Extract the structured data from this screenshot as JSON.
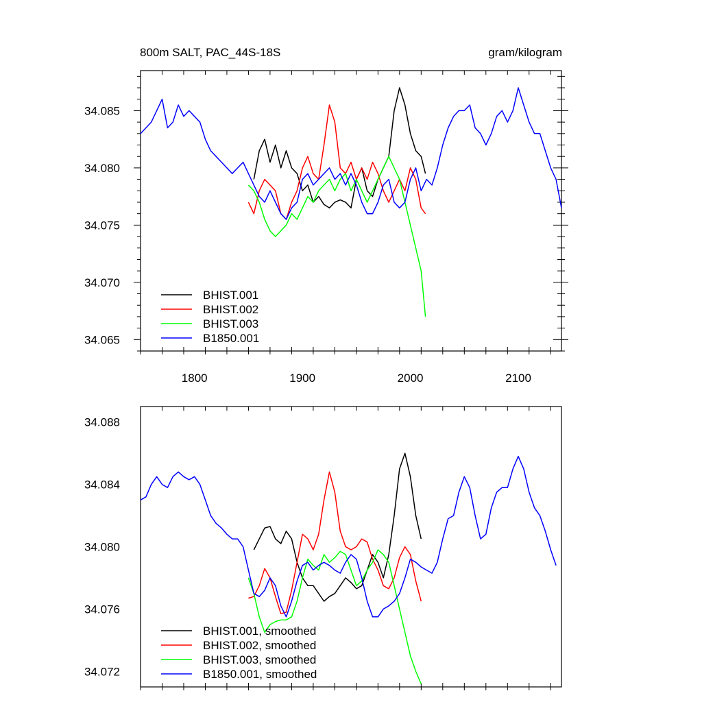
{
  "chart_data": [
    {
      "type": "line",
      "title": "800m SALT, PAC_44S-18S",
      "units": "gram/kilogram",
      "xlim": [
        1750,
        2140
      ],
      "ylim": [
        34.064,
        34.0885
      ],
      "xticks": [
        1800,
        1900,
        2000,
        2100
      ],
      "xtick_labels": [
        "1800",
        "1900",
        "2000",
        "2100"
      ],
      "yticks": [
        34.065,
        34.07,
        34.075,
        34.08,
        34.085
      ],
      "ytick_labels": [
        "34.065",
        "34.070",
        "34.075",
        "34.080",
        "34.085"
      ],
      "grid": false,
      "legend": "bottom-left",
      "series": [
        {
          "name": "BHIST.001",
          "color": "#000000",
          "x": [
            1855,
            1860,
            1865,
            1870,
            1875,
            1880,
            1885,
            1890,
            1895,
            1900,
            1905,
            1910,
            1915,
            1920,
            1925,
            1930,
            1935,
            1940,
            1945,
            1950,
            1955,
            1960,
            1965,
            1970,
            1975,
            1980,
            1985,
            1990,
            1995,
            2000,
            2005,
            2010,
            2014
          ],
          "y": [
            34.079,
            34.0815,
            34.0825,
            34.0805,
            34.082,
            34.08,
            34.0815,
            34.08,
            34.0795,
            34.078,
            34.0785,
            34.077,
            34.0775,
            34.0768,
            34.0765,
            34.077,
            34.0772,
            34.077,
            34.0765,
            34.079,
            34.08,
            34.078,
            34.0775,
            34.079,
            34.08,
            34.081,
            34.085,
            34.087,
            34.0855,
            34.083,
            34.0815,
            34.081,
            34.0795
          ]
        },
        {
          "name": "BHIST.002",
          "color": "#ff0000",
          "x": [
            1850,
            1855,
            1860,
            1865,
            1870,
            1875,
            1880,
            1885,
            1890,
            1895,
            1900,
            1905,
            1910,
            1915,
            1920,
            1925,
            1930,
            1935,
            1940,
            1945,
            1950,
            1955,
            1960,
            1965,
            1970,
            1975,
            1980,
            1985,
            1990,
            1995,
            2000,
            2005,
            2010,
            2014
          ],
          "y": [
            34.077,
            34.076,
            34.078,
            34.079,
            34.0785,
            34.078,
            34.076,
            34.0755,
            34.077,
            34.078,
            34.08,
            34.081,
            34.0795,
            34.079,
            34.082,
            34.0855,
            34.084,
            34.08,
            34.0795,
            34.0805,
            34.079,
            34.08,
            34.079,
            34.0805,
            34.0795,
            34.078,
            34.077,
            34.078,
            34.079,
            34.078,
            34.08,
            34.079,
            34.0765,
            34.076
          ]
        },
        {
          "name": "BHIST.003",
          "color": "#00ff00",
          "x": [
            1850,
            1855,
            1860,
            1865,
            1870,
            1875,
            1880,
            1885,
            1890,
            1895,
            1900,
            1905,
            1910,
            1915,
            1920,
            1925,
            1930,
            1935,
            1940,
            1945,
            1950,
            1955,
            1960,
            1965,
            1970,
            1975,
            1980,
            1985,
            1990,
            1995,
            2000,
            2005,
            2010,
            2014
          ],
          "y": [
            34.0785,
            34.078,
            34.077,
            34.0755,
            34.0745,
            34.074,
            34.0745,
            34.075,
            34.076,
            34.0755,
            34.0765,
            34.0775,
            34.077,
            34.078,
            34.0785,
            34.079,
            34.078,
            34.079,
            34.0795,
            34.078,
            34.079,
            34.078,
            34.077,
            34.078,
            34.079,
            34.08,
            34.081,
            34.08,
            34.079,
            34.077,
            34.075,
            34.073,
            34.071,
            34.067
          ]
        },
        {
          "name": "B1850.001",
          "color": "#0000ff",
          "x": [
            1750,
            1755,
            1760,
            1765,
            1770,
            1775,
            1780,
            1785,
            1790,
            1795,
            1800,
            1805,
            1810,
            1815,
            1820,
            1825,
            1830,
            1835,
            1840,
            1845,
            1850,
            1855,
            1860,
            1865,
            1870,
            1875,
            1880,
            1885,
            1890,
            1895,
            1900,
            1905,
            1910,
            1915,
            1920,
            1925,
            1930,
            1935,
            1940,
            1945,
            1950,
            1955,
            1960,
            1965,
            1970,
            1975,
            1980,
            1985,
            1990,
            1995,
            2000,
            2005,
            2010,
            2015,
            2020,
            2025,
            2030,
            2035,
            2040,
            2045,
            2050,
            2055,
            2060,
            2065,
            2070,
            2075,
            2080,
            2085,
            2090,
            2095,
            2100,
            2105,
            2110,
            2115,
            2120,
            2125,
            2130,
            2135,
            2140
          ],
          "y": [
            34.083,
            34.0835,
            34.084,
            34.085,
            34.086,
            34.0835,
            34.084,
            34.0855,
            34.0845,
            34.085,
            34.0845,
            34.084,
            34.0825,
            34.0815,
            34.081,
            34.0805,
            34.08,
            34.0795,
            34.08,
            34.0805,
            34.0795,
            34.0785,
            34.0775,
            34.077,
            34.078,
            34.077,
            34.076,
            34.0755,
            34.0765,
            34.077,
            34.079,
            34.0795,
            34.0785,
            34.079,
            34.0795,
            34.08,
            34.079,
            34.0795,
            34.0785,
            34.0795,
            34.0785,
            34.077,
            34.076,
            34.076,
            34.077,
            34.0785,
            34.079,
            34.077,
            34.0765,
            34.077,
            34.079,
            34.08,
            34.078,
            34.079,
            34.0785,
            34.08,
            34.082,
            34.0835,
            34.0845,
            34.085,
            34.085,
            34.0855,
            34.0835,
            34.083,
            34.082,
            34.083,
            34.0845,
            34.085,
            34.084,
            34.085,
            34.087,
            34.0855,
            34.084,
            34.083,
            34.083,
            34.0815,
            34.08,
            34.079,
            34.0765
          ]
        }
      ]
    },
    {
      "type": "line",
      "xlim": [
        1750,
        2140
      ],
      "ylim": [
        34.071,
        34.089
      ],
      "xticks": [
        1800,
        1900,
        2000,
        2100
      ],
      "yticks": [
        34.072,
        34.076,
        34.08,
        34.084,
        34.088
      ],
      "ytick_labels": [
        "34.072",
        "34.076",
        "34.080",
        "34.084",
        "34.088"
      ],
      "grid": false,
      "legend": "bottom-left",
      "series": [
        {
          "name": "BHIST.001, smoothed",
          "color": "#000000",
          "x": [
            1855,
            1860,
            1865,
            1870,
            1875,
            1880,
            1885,
            1890,
            1895,
            1900,
            1905,
            1910,
            1915,
            1920,
            1925,
            1930,
            1935,
            1940,
            1945,
            1950,
            1955,
            1960,
            1965,
            1970,
            1975,
            1980,
            1985,
            1990,
            1995,
            2000,
            2005,
            2010
          ],
          "y": [
            34.0798,
            34.0805,
            34.0812,
            34.0813,
            34.0805,
            34.0802,
            34.081,
            34.0805,
            34.079,
            34.078,
            34.0775,
            34.0775,
            34.077,
            34.0765,
            34.0768,
            34.077,
            34.0775,
            34.078,
            34.0777,
            34.0773,
            34.0775,
            34.0785,
            34.0795,
            34.079,
            34.078,
            34.0795,
            34.082,
            34.085,
            34.086,
            34.0845,
            34.082,
            34.0805
          ]
        },
        {
          "name": "BHIST.002, smoothed",
          "color": "#ff0000",
          "x": [
            1850,
            1855,
            1860,
            1865,
            1870,
            1875,
            1880,
            1885,
            1890,
            1895,
            1900,
            1905,
            1910,
            1915,
            1920,
            1925,
            1930,
            1935,
            1940,
            1945,
            1950,
            1955,
            1960,
            1965,
            1970,
            1975,
            1980,
            1985,
            1990,
            1995,
            2000,
            2005,
            2010
          ],
          "y": [
            34.0767,
            34.0768,
            34.0775,
            34.0786,
            34.078,
            34.0768,
            34.0757,
            34.0758,
            34.0772,
            34.079,
            34.0808,
            34.0805,
            34.0798,
            34.0808,
            34.083,
            34.0848,
            34.0835,
            34.081,
            34.08,
            34.0798,
            34.08,
            34.0805,
            34.0803,
            34.0792,
            34.0785,
            34.0775,
            34.0773,
            34.078,
            34.0793,
            34.08,
            34.0795,
            34.0778,
            34.0765
          ]
        },
        {
          "name": "BHIST.003, smoothed",
          "color": "#00ff00",
          "x": [
            1850,
            1855,
            1860,
            1865,
            1870,
            1875,
            1880,
            1885,
            1890,
            1895,
            1900,
            1905,
            1910,
            1915,
            1920,
            1925,
            1930,
            1935,
            1940,
            1945,
            1950,
            1955,
            1960,
            1965,
            1970,
            1975,
            1980,
            1985,
            1990,
            1995,
            2000,
            2005,
            2010
          ],
          "y": [
            34.078,
            34.077,
            34.0755,
            34.0745,
            34.075,
            34.0752,
            34.0753,
            34.0753,
            34.0755,
            34.0765,
            34.078,
            34.0792,
            34.0788,
            34.0785,
            34.0795,
            34.079,
            34.0793,
            34.0797,
            34.0795,
            34.0785,
            34.0775,
            34.0778,
            34.0785,
            34.079,
            34.0798,
            34.0795,
            34.079,
            34.0775,
            34.076,
            34.0745,
            34.073,
            34.072,
            34.0712
          ]
        },
        {
          "name": "B1850.001, smoothed",
          "color": "#0000ff",
          "x": [
            1750,
            1755,
            1760,
            1765,
            1770,
            1775,
            1780,
            1785,
            1790,
            1795,
            1800,
            1805,
            1810,
            1815,
            1820,
            1825,
            1830,
            1835,
            1840,
            1845,
            1850,
            1855,
            1860,
            1865,
            1870,
            1875,
            1880,
            1885,
            1890,
            1895,
            1900,
            1905,
            1910,
            1915,
            1920,
            1925,
            1930,
            1935,
            1940,
            1945,
            1950,
            1955,
            1960,
            1965,
            1970,
            1975,
            1980,
            1985,
            1990,
            1995,
            2000,
            2005,
            2010,
            2015,
            2020,
            2025,
            2030,
            2035,
            2040,
            2045,
            2050,
            2055,
            2060,
            2065,
            2070,
            2075,
            2080,
            2085,
            2090,
            2095,
            2100,
            2105,
            2110,
            2115,
            2120,
            2125,
            2130,
            2135
          ],
          "y": [
            34.083,
            34.0832,
            34.084,
            34.0845,
            34.084,
            34.0838,
            34.0845,
            34.0848,
            34.0845,
            34.0843,
            34.0845,
            34.084,
            34.083,
            34.082,
            34.0815,
            34.0812,
            34.0808,
            34.0805,
            34.0805,
            34.08,
            34.0785,
            34.077,
            34.0768,
            34.0772,
            34.078,
            34.0775,
            34.0762,
            34.0755,
            34.0765,
            34.0778,
            34.0788,
            34.079,
            34.0785,
            34.0788,
            34.079,
            34.0788,
            34.0785,
            34.0783,
            34.079,
            34.0795,
            34.0792,
            34.078,
            34.0765,
            34.0755,
            34.0755,
            34.076,
            34.0762,
            34.0765,
            34.077,
            34.078,
            34.0792,
            34.079,
            34.0787,
            34.0785,
            34.0783,
            34.079,
            34.0805,
            34.0818,
            34.082,
            34.0835,
            34.0845,
            34.0838,
            34.082,
            34.0805,
            34.0808,
            34.0825,
            34.0835,
            34.0838,
            34.0838,
            34.085,
            34.0858,
            34.085,
            34.0835,
            34.0825,
            34.082,
            34.081,
            34.0798,
            34.0788
          ]
        }
      ]
    }
  ]
}
